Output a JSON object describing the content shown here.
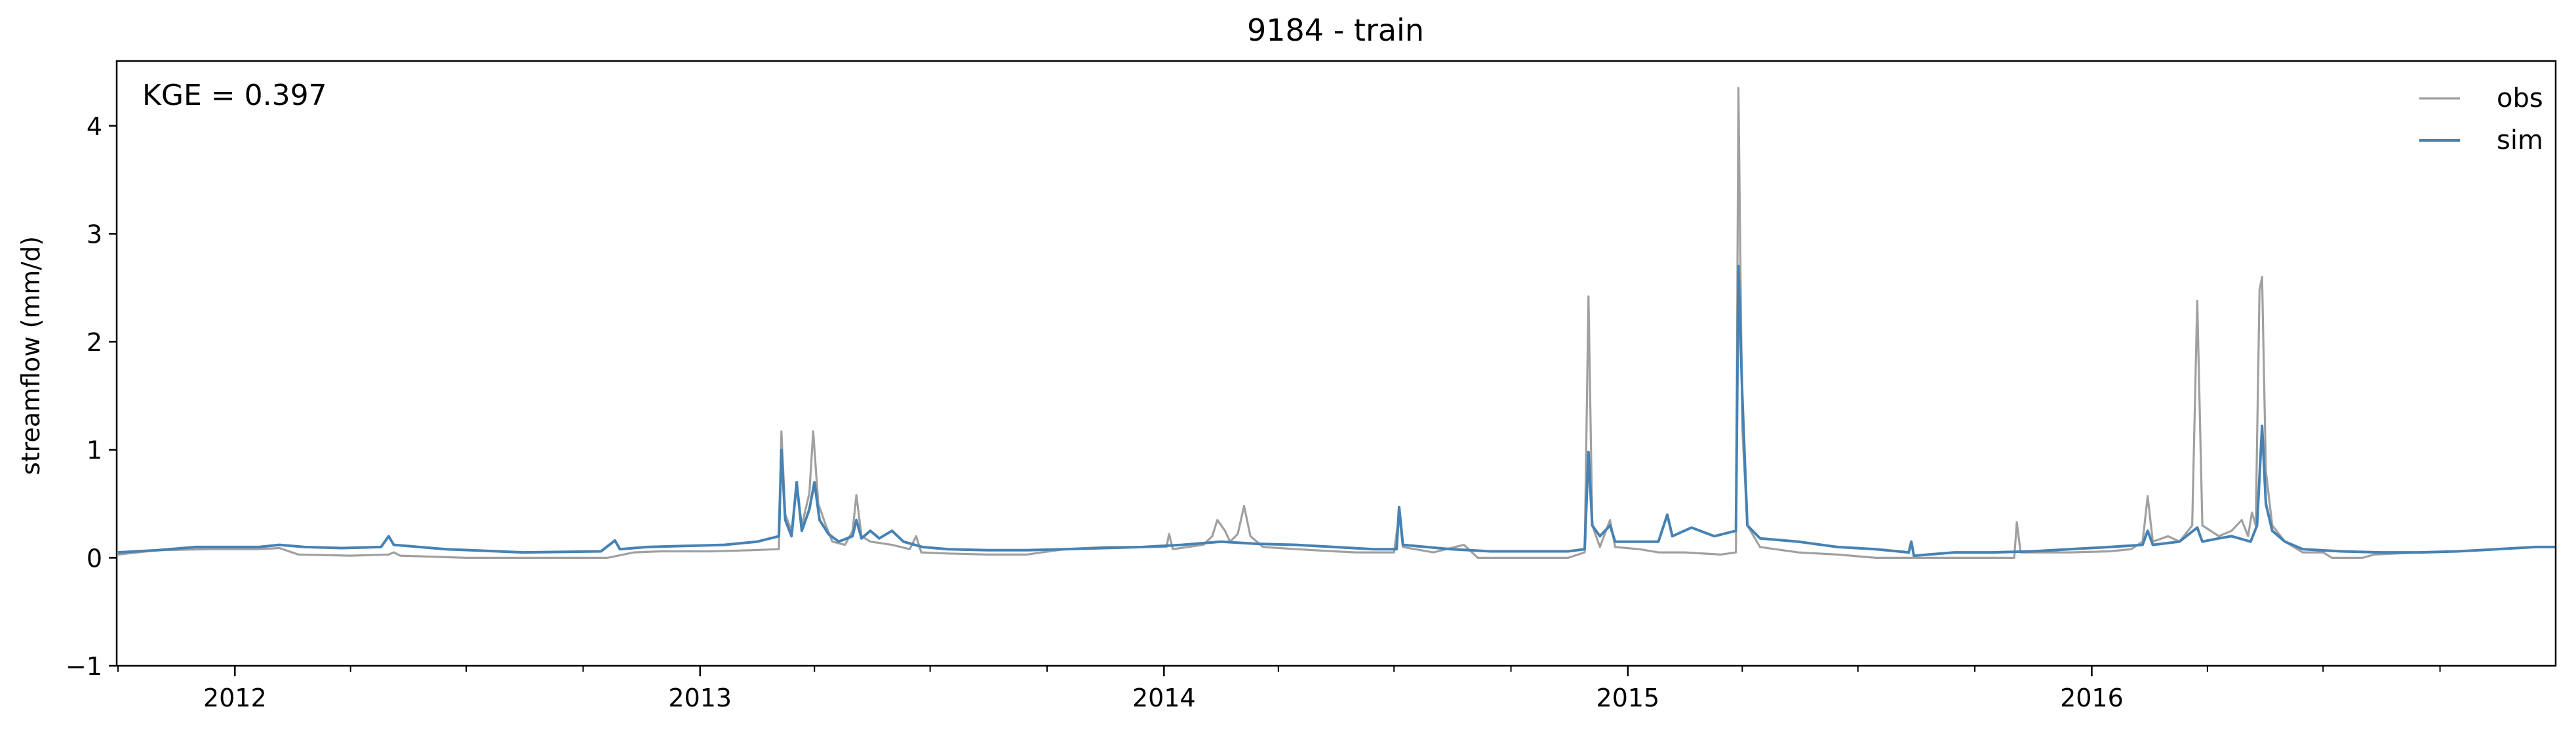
{
  "chart_data": {
    "type": "line",
    "title": "9184 - train",
    "ylabel": "streamflow (mm/d)",
    "xlabel": "",
    "annotation": "KGE = 0.397",
    "legend_position": "top-right",
    "grid": false,
    "xlim": [
      "2011-09-30",
      "2016-12-31"
    ],
    "ylim": [
      -1,
      4.6
    ],
    "y_ticks": [
      -1,
      0,
      1,
      2,
      3,
      4
    ],
    "x_ticks": [
      {
        "date": "2012-01-01",
        "label": "2012"
      },
      {
        "date": "2013-01-01",
        "label": "2013"
      },
      {
        "date": "2014-01-01",
        "label": "2014"
      },
      {
        "date": "2015-01-01",
        "label": "2015"
      },
      {
        "date": "2016-01-01",
        "label": "2016"
      }
    ],
    "series": [
      {
        "name": "obs",
        "color": "#a0a0a0",
        "points": [
          [
            "2011-10-01",
            0.03
          ],
          [
            "2011-11-01",
            0.07
          ],
          [
            "2011-12-15",
            0.08
          ],
          [
            "2012-01-20",
            0.08
          ],
          [
            "2012-02-05",
            0.09
          ],
          [
            "2012-02-20",
            0.03
          ],
          [
            "2012-04-01",
            0.02
          ],
          [
            "2012-05-01",
            0.03
          ],
          [
            "2012-05-05",
            0.05
          ],
          [
            "2012-05-10",
            0.02
          ],
          [
            "2012-07-01",
            0.0
          ],
          [
            "2012-09-01",
            0.0
          ],
          [
            "2012-10-20",
            0.0
          ],
          [
            "2012-11-10",
            0.05
          ],
          [
            "2012-12-01",
            0.06
          ],
          [
            "2013-01-10",
            0.06
          ],
          [
            "2013-02-10",
            0.07
          ],
          [
            "2013-03-04",
            0.08
          ],
          [
            "2013-03-06",
            1.17
          ],
          [
            "2013-03-09",
            0.4
          ],
          [
            "2013-03-14",
            0.25
          ],
          [
            "2013-03-18",
            0.65
          ],
          [
            "2013-03-22",
            0.3
          ],
          [
            "2013-03-28",
            0.6
          ],
          [
            "2013-03-31",
            1.17
          ],
          [
            "2013-04-04",
            0.5
          ],
          [
            "2013-04-10",
            0.3
          ],
          [
            "2013-04-15",
            0.15
          ],
          [
            "2013-04-25",
            0.12
          ],
          [
            "2013-05-01",
            0.25
          ],
          [
            "2013-05-04",
            0.58
          ],
          [
            "2013-05-08",
            0.2
          ],
          [
            "2013-05-15",
            0.15
          ],
          [
            "2013-06-01",
            0.12
          ],
          [
            "2013-06-15",
            0.08
          ],
          [
            "2013-06-20",
            0.2
          ],
          [
            "2013-06-24",
            0.05
          ],
          [
            "2013-07-15",
            0.04
          ],
          [
            "2013-08-15",
            0.03
          ],
          [
            "2013-09-15",
            0.03
          ],
          [
            "2013-10-15",
            0.08
          ],
          [
            "2013-11-15",
            0.1
          ],
          [
            "2013-12-15",
            0.1
          ],
          [
            "2014-01-03",
            0.1
          ],
          [
            "2014-01-05",
            0.22
          ],
          [
            "2014-01-08",
            0.08
          ],
          [
            "2014-02-01",
            0.12
          ],
          [
            "2014-02-08",
            0.2
          ],
          [
            "2014-02-12",
            0.35
          ],
          [
            "2014-02-18",
            0.25
          ],
          [
            "2014-02-22",
            0.15
          ],
          [
            "2014-02-28",
            0.22
          ],
          [
            "2014-03-05",
            0.48
          ],
          [
            "2014-03-10",
            0.2
          ],
          [
            "2014-03-20",
            0.1
          ],
          [
            "2014-04-15",
            0.08
          ],
          [
            "2014-05-15",
            0.06
          ],
          [
            "2014-06-01",
            0.05
          ],
          [
            "2014-07-01",
            0.05
          ],
          [
            "2014-07-05",
            0.4
          ],
          [
            "2014-07-08",
            0.1
          ],
          [
            "2014-08-01",
            0.05
          ],
          [
            "2014-08-25",
            0.12
          ],
          [
            "2014-09-05",
            0.0
          ],
          [
            "2014-10-15",
            0.0
          ],
          [
            "2014-11-15",
            0.0
          ],
          [
            "2014-11-28",
            0.05
          ],
          [
            "2014-12-01",
            2.42
          ],
          [
            "2014-12-04",
            0.3
          ],
          [
            "2014-12-10",
            0.1
          ],
          [
            "2014-12-18",
            0.35
          ],
          [
            "2014-12-22",
            0.1
          ],
          [
            "2015-01-10",
            0.08
          ],
          [
            "2015-01-25",
            0.05
          ],
          [
            "2015-02-15",
            0.05
          ],
          [
            "2015-03-15",
            0.03
          ],
          [
            "2015-03-27",
            0.05
          ],
          [
            "2015-03-29",
            4.35
          ],
          [
            "2015-04-01",
            1.2
          ],
          [
            "2015-04-05",
            0.3
          ],
          [
            "2015-04-15",
            0.1
          ],
          [
            "2015-05-15",
            0.05
          ],
          [
            "2015-06-15",
            0.03
          ],
          [
            "2015-07-15",
            0.0
          ],
          [
            "2015-08-15",
            0.0
          ],
          [
            "2015-09-15",
            0.0
          ],
          [
            "2015-10-15",
            0.0
          ],
          [
            "2015-11-01",
            0.0
          ],
          [
            "2015-11-03",
            0.33
          ],
          [
            "2015-11-06",
            0.05
          ],
          [
            "2015-12-15",
            0.05
          ],
          [
            "2016-01-15",
            0.06
          ],
          [
            "2016-02-01",
            0.08
          ],
          [
            "2016-02-10",
            0.15
          ],
          [
            "2016-02-14",
            0.57
          ],
          [
            "2016-02-18",
            0.15
          ],
          [
            "2016-03-01",
            0.2
          ],
          [
            "2016-03-10",
            0.15
          ],
          [
            "2016-03-20",
            0.3
          ],
          [
            "2016-03-24",
            2.38
          ],
          [
            "2016-03-28",
            0.3
          ],
          [
            "2016-04-10",
            0.2
          ],
          [
            "2016-04-20",
            0.25
          ],
          [
            "2016-04-28",
            0.35
          ],
          [
            "2016-05-03",
            0.2
          ],
          [
            "2016-05-06",
            0.42
          ],
          [
            "2016-05-09",
            0.3
          ],
          [
            "2016-05-12",
            2.48
          ],
          [
            "2016-05-14",
            2.6
          ],
          [
            "2016-05-17",
            0.8
          ],
          [
            "2016-05-22",
            0.3
          ],
          [
            "2016-06-01",
            0.15
          ],
          [
            "2016-06-15",
            0.05
          ],
          [
            "2016-07-01",
            0.05
          ],
          [
            "2016-07-08",
            0.0
          ],
          [
            "2016-08-01",
            0.0
          ],
          [
            "2016-08-10",
            0.03
          ],
          [
            "2016-09-15",
            0.05
          ],
          [
            "2016-10-15",
            0.06
          ],
          [
            "2016-11-15",
            0.08
          ],
          [
            "2016-12-15",
            0.1
          ],
          [
            "2016-12-31",
            0.1
          ]
        ]
      },
      {
        "name": "sim",
        "color": "#4682b4",
        "points": [
          [
            "2011-10-01",
            0.05
          ],
          [
            "2011-11-01",
            0.07
          ],
          [
            "2011-12-01",
            0.1
          ],
          [
            "2012-01-20",
            0.1
          ],
          [
            "2012-02-05",
            0.12
          ],
          [
            "2012-02-25",
            0.1
          ],
          [
            "2012-03-25",
            0.09
          ],
          [
            "2012-04-25",
            0.1
          ],
          [
            "2012-05-01",
            0.2
          ],
          [
            "2012-05-05",
            0.12
          ],
          [
            "2012-06-15",
            0.08
          ],
          [
            "2012-08-15",
            0.05
          ],
          [
            "2012-10-15",
            0.06
          ],
          [
            "2012-10-26",
            0.16
          ],
          [
            "2012-10-30",
            0.08
          ],
          [
            "2012-11-20",
            0.1
          ],
          [
            "2012-12-20",
            0.11
          ],
          [
            "2013-01-20",
            0.12
          ],
          [
            "2013-02-15",
            0.15
          ],
          [
            "2013-03-04",
            0.2
          ],
          [
            "2013-03-06",
            1.0
          ],
          [
            "2013-03-09",
            0.35
          ],
          [
            "2013-03-14",
            0.2
          ],
          [
            "2013-03-18",
            0.7
          ],
          [
            "2013-03-22",
            0.25
          ],
          [
            "2013-03-28",
            0.45
          ],
          [
            "2013-04-01",
            0.7
          ],
          [
            "2013-04-05",
            0.35
          ],
          [
            "2013-04-12",
            0.22
          ],
          [
            "2013-04-20",
            0.15
          ],
          [
            "2013-05-01",
            0.2
          ],
          [
            "2013-05-04",
            0.35
          ],
          [
            "2013-05-08",
            0.18
          ],
          [
            "2013-05-15",
            0.25
          ],
          [
            "2013-05-22",
            0.18
          ],
          [
            "2013-06-01",
            0.25
          ],
          [
            "2013-06-10",
            0.15
          ],
          [
            "2013-06-25",
            0.1
          ],
          [
            "2013-07-15",
            0.08
          ],
          [
            "2013-08-15",
            0.07
          ],
          [
            "2013-09-15",
            0.07
          ],
          [
            "2013-10-15",
            0.08
          ],
          [
            "2013-11-15",
            0.09
          ],
          [
            "2013-12-15",
            0.1
          ],
          [
            "2014-01-15",
            0.12
          ],
          [
            "2014-02-15",
            0.15
          ],
          [
            "2014-03-15",
            0.13
          ],
          [
            "2014-04-15",
            0.12
          ],
          [
            "2014-05-15",
            0.1
          ],
          [
            "2014-06-15",
            0.08
          ],
          [
            "2014-07-03",
            0.08
          ],
          [
            "2014-07-05",
            0.47
          ],
          [
            "2014-07-08",
            0.12
          ],
          [
            "2014-08-15",
            0.08
          ],
          [
            "2014-09-15",
            0.06
          ],
          [
            "2014-10-15",
            0.06
          ],
          [
            "2014-11-15",
            0.06
          ],
          [
            "2014-11-28",
            0.08
          ],
          [
            "2014-12-01",
            0.98
          ],
          [
            "2014-12-04",
            0.3
          ],
          [
            "2014-12-10",
            0.2
          ],
          [
            "2014-12-18",
            0.3
          ],
          [
            "2014-12-22",
            0.15
          ],
          [
            "2015-01-15",
            0.15
          ],
          [
            "2015-01-25",
            0.15
          ],
          [
            "2015-02-01",
            0.4
          ],
          [
            "2015-02-05",
            0.2
          ],
          [
            "2015-02-20",
            0.28
          ],
          [
            "2015-03-10",
            0.2
          ],
          [
            "2015-03-27",
            0.25
          ],
          [
            "2015-03-29",
            2.7
          ],
          [
            "2015-04-01",
            1.5
          ],
          [
            "2015-04-05",
            0.3
          ],
          [
            "2015-04-15",
            0.18
          ],
          [
            "2015-05-15",
            0.15
          ],
          [
            "2015-06-15",
            0.1
          ],
          [
            "2015-07-15",
            0.08
          ],
          [
            "2015-08-10",
            0.05
          ],
          [
            "2015-08-12",
            0.15
          ],
          [
            "2015-08-14",
            0.02
          ],
          [
            "2015-09-15",
            0.05
          ],
          [
            "2015-10-15",
            0.05
          ],
          [
            "2015-11-15",
            0.06
          ],
          [
            "2015-12-15",
            0.08
          ],
          [
            "2016-01-15",
            0.1
          ],
          [
            "2016-02-10",
            0.12
          ],
          [
            "2016-02-14",
            0.25
          ],
          [
            "2016-02-18",
            0.12
          ],
          [
            "2016-03-10",
            0.15
          ],
          [
            "2016-03-24",
            0.28
          ],
          [
            "2016-03-28",
            0.15
          ],
          [
            "2016-04-10",
            0.18
          ],
          [
            "2016-04-20",
            0.2
          ],
          [
            "2016-05-05",
            0.15
          ],
          [
            "2016-05-10",
            0.3
          ],
          [
            "2016-05-14",
            1.22
          ],
          [
            "2016-05-17",
            0.5
          ],
          [
            "2016-05-22",
            0.25
          ],
          [
            "2016-06-01",
            0.15
          ],
          [
            "2016-06-15",
            0.08
          ],
          [
            "2016-07-15",
            0.06
          ],
          [
            "2016-08-15",
            0.05
          ],
          [
            "2016-09-15",
            0.05
          ],
          [
            "2016-10-15",
            0.06
          ],
          [
            "2016-11-15",
            0.08
          ],
          [
            "2016-12-15",
            0.1
          ],
          [
            "2016-12-31",
            0.1
          ]
        ]
      }
    ]
  }
}
